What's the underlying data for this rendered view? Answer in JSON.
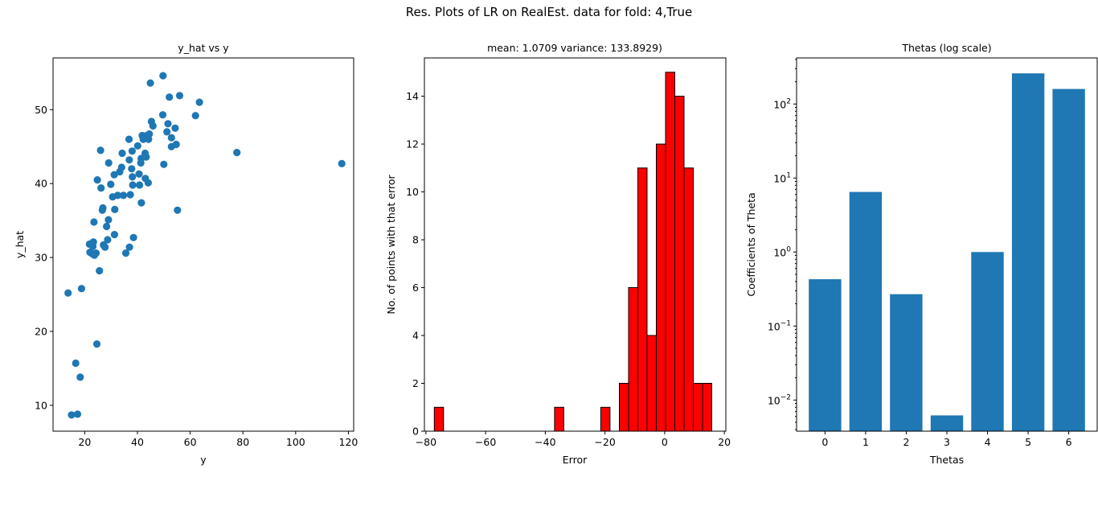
{
  "figure_title": "Res. Plots of LR on RealEst. data for fold: 4,True",
  "chart_data": [
    {
      "type": "scatter",
      "title": "y_hat vs y",
      "xlabel": "y",
      "ylabel": "y_hat",
      "xlim": [
        8,
        122
      ],
      "ylim": [
        6.5,
        57
      ],
      "xticks": [
        "20",
        "40",
        "60",
        "80",
        "100",
        "120"
      ],
      "yticks": [
        "10",
        "20",
        "30",
        "40",
        "50"
      ],
      "color": "#1f77b4",
      "points": [
        [
          13.7,
          25.2
        ],
        [
          15.0,
          8.7
        ],
        [
          16.6,
          15.7
        ],
        [
          17.3,
          8.8
        ],
        [
          18.3,
          13.8
        ],
        [
          18.8,
          25.8
        ],
        [
          21.8,
          31.8
        ],
        [
          22.0,
          30.7
        ],
        [
          22.9,
          30.5
        ],
        [
          23.1,
          31.5
        ],
        [
          23.3,
          32.1
        ],
        [
          23.5,
          34.8
        ],
        [
          23.7,
          30.3
        ],
        [
          24.3,
          30.6
        ],
        [
          24.6,
          18.3
        ],
        [
          24.8,
          40.5
        ],
        [
          25.6,
          28.2
        ],
        [
          26.0,
          44.5
        ],
        [
          26.2,
          39.4
        ],
        [
          26.7,
          36.4
        ],
        [
          26.9,
          36.7
        ],
        [
          27.1,
          31.7
        ],
        [
          27.7,
          31.4
        ],
        [
          28.3,
          34.2
        ],
        [
          28.7,
          32.4
        ],
        [
          29.0,
          35.1
        ],
        [
          29.1,
          42.8
        ],
        [
          29.9,
          39.9
        ],
        [
          30.6,
          38.2
        ],
        [
          31.2,
          41.2
        ],
        [
          31.3,
          33.1
        ],
        [
          31.4,
          36.5
        ],
        [
          32.5,
          38.4
        ],
        [
          33.3,
          41.6
        ],
        [
          34.0,
          42.2
        ],
        [
          34.2,
          44.1
        ],
        [
          34.7,
          38.4
        ],
        [
          35.6,
          30.6
        ],
        [
          36.8,
          46.0
        ],
        [
          36.9,
          43.2
        ],
        [
          37.0,
          31.4
        ],
        [
          37.3,
          38.5
        ],
        [
          37.8,
          42.0
        ],
        [
          38.0,
          44.4
        ],
        [
          38.1,
          40.9
        ],
        [
          38.2,
          39.8
        ],
        [
          38.5,
          32.7
        ],
        [
          40.1,
          45.1
        ],
        [
          40.6,
          41.3
        ],
        [
          40.8,
          39.8
        ],
        [
          41.3,
          42.8
        ],
        [
          41.4,
          43.4
        ],
        [
          41.5,
          37.4
        ],
        [
          41.8,
          46.5
        ],
        [
          42.2,
          46.0
        ],
        [
          42.9,
          44.1
        ],
        [
          43.0,
          40.7
        ],
        [
          43.3,
          43.6
        ],
        [
          43.5,
          46.5
        ],
        [
          44.1,
          40.1
        ],
        [
          44.2,
          46.0
        ],
        [
          44.5,
          46.7
        ],
        [
          44.9,
          53.6
        ],
        [
          45.3,
          48.4
        ],
        [
          45.9,
          47.8
        ],
        [
          49.6,
          49.3
        ],
        [
          49.7,
          54.6
        ],
        [
          50.0,
          42.6
        ],
        [
          51.2,
          47.0
        ],
        [
          51.6,
          48.1
        ],
        [
          52.1,
          51.7
        ],
        [
          52.9,
          46.2
        ],
        [
          52.9,
          45.0
        ],
        [
          54.3,
          47.5
        ],
        [
          54.7,
          45.3
        ],
        [
          55.2,
          36.4
        ],
        [
          56.0,
          51.9
        ],
        [
          62.0,
          49.2
        ],
        [
          63.5,
          51.0
        ],
        [
          77.7,
          44.2
        ],
        [
          117.5,
          42.7
        ]
      ]
    },
    {
      "type": "bar",
      "subtype": "histogram",
      "title": "mean: 1.0709 variance: 133.8929)",
      "xlabel": "Error",
      "ylabel": "No. of points with that error",
      "xlim": [
        -80.5,
        20.5
      ],
      "ylim": [
        0,
        15.6
      ],
      "xticks": [
        "−80",
        "−60",
        "−40",
        "−20",
        "0",
        "20"
      ],
      "yticks": [
        "0",
        "2",
        "4",
        "6",
        "8",
        "10",
        "12",
        "14"
      ],
      "color": "#ff0000",
      "edgecolor": "#000000",
      "bin_start": -77.2,
      "bin_width": 3.1,
      "counts": [
        1,
        0,
        0,
        0,
        0,
        0,
        0,
        0,
        0,
        0,
        0,
        0,
        0,
        1,
        0,
        0,
        0,
        0,
        1,
        0,
        2,
        6,
        11,
        4,
        12,
        15,
        14,
        11,
        2,
        2
      ]
    },
    {
      "type": "bar",
      "title": "Thetas (log scale)",
      "xlabel": "Thetas",
      "ylabel": "Coefficients of Theta",
      "yscale": "log",
      "ylim": [
        0.0038,
        420
      ],
      "categories": [
        "0",
        "1",
        "2",
        "3",
        "4",
        "5",
        "6"
      ],
      "values": [
        0.43,
        6.5,
        0.27,
        0.0062,
        1.0,
        260,
        160
      ],
      "ytick_values": [
        0.01,
        0.1,
        1,
        10,
        100
      ],
      "ytick_labels": [
        {
          "base": "10",
          "exp": "−2"
        },
        {
          "base": "10",
          "exp": "−1"
        },
        {
          "base": "10",
          "exp": "0"
        },
        {
          "base": "10",
          "exp": "1"
        },
        {
          "base": "10",
          "exp": "2"
        }
      ],
      "color": "#1f77b4"
    }
  ]
}
